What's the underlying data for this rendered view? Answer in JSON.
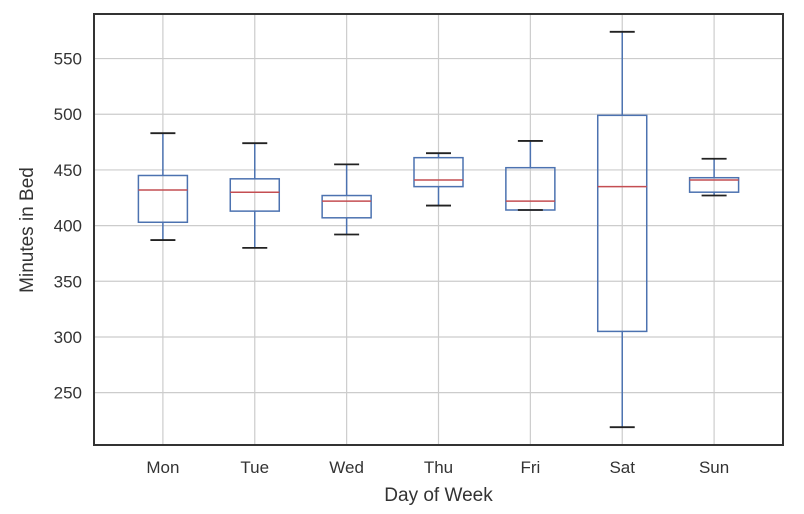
{
  "chart_data": {
    "type": "boxplot",
    "xlabel": "Day of Week",
    "ylabel": "Minutes in Bed",
    "ylim": [
      203,
      590
    ],
    "yticks": [
      250,
      300,
      350,
      400,
      450,
      500,
      550
    ],
    "grid": true,
    "categories": [
      "Mon",
      "Tue",
      "Wed",
      "Thu",
      "Fri",
      "Sat",
      "Sun"
    ],
    "boxes": [
      {
        "whisker_low": 387,
        "q1": 403,
        "median": 432,
        "q3": 445,
        "whisker_high": 483
      },
      {
        "whisker_low": 380,
        "q1": 413,
        "median": 430,
        "q3": 442,
        "whisker_high": 474
      },
      {
        "whisker_low": 392,
        "q1": 407,
        "median": 422,
        "q3": 427,
        "whisker_high": 455
      },
      {
        "whisker_low": 418,
        "q1": 435,
        "median": 441,
        "q3": 461,
        "whisker_high": 465
      },
      {
        "whisker_low": 414,
        "q1": 414,
        "median": 422,
        "q3": 452,
        "whisker_high": 476
      },
      {
        "whisker_low": 219,
        "q1": 305,
        "median": 435,
        "q3": 499,
        "whisker_high": 574
      },
      {
        "whisker_low": 427,
        "q1": 430,
        "median": 441,
        "q3": 443,
        "whisker_high": 460
      }
    ],
    "colors": {
      "box": "#4c72b0",
      "median": "#c44e52",
      "cap": "#222222",
      "grid": "#cccccc",
      "frame": "#333333"
    }
  }
}
